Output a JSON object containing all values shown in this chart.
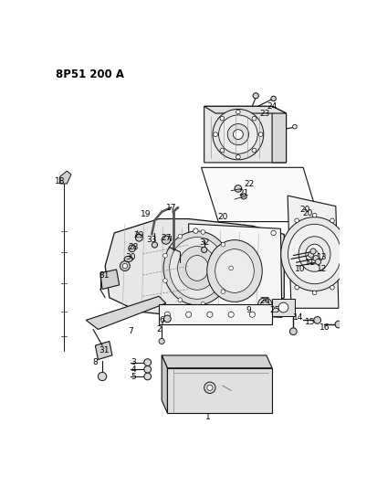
{
  "title": "8P51 200 A",
  "bg_color": "#ffffff",
  "fig_width": 4.13,
  "fig_height": 5.33,
  "dpi": 100,
  "labels": [
    [
      "18",
      18,
      175
    ],
    [
      "19",
      140,
      222
    ],
    [
      "17",
      175,
      212
    ],
    [
      "33",
      148,
      258
    ],
    [
      "27",
      168,
      255
    ],
    [
      "29",
      130,
      252
    ],
    [
      "28",
      122,
      268
    ],
    [
      "30",
      118,
      282
    ],
    [
      "31",
      80,
      308
    ],
    [
      "31",
      80,
      415
    ],
    [
      "8",
      68,
      432
    ],
    [
      "7",
      118,
      388
    ],
    [
      "6",
      162,
      372
    ],
    [
      "2",
      158,
      385
    ],
    [
      "9",
      285,
      358
    ],
    [
      "3",
      122,
      432
    ],
    [
      "4",
      122,
      442
    ],
    [
      "5",
      122,
      453
    ],
    [
      "1",
      228,
      510
    ],
    [
      "32",
      222,
      262
    ],
    [
      "24",
      318,
      68
    ],
    [
      "23",
      308,
      78
    ],
    [
      "22",
      285,
      178
    ],
    [
      "21",
      278,
      192
    ],
    [
      "20",
      248,
      225
    ],
    [
      "20",
      368,
      220
    ],
    [
      "13",
      388,
      282
    ],
    [
      "11",
      372,
      290
    ],
    [
      "10",
      358,
      300
    ],
    [
      "12",
      388,
      300
    ],
    [
      "26",
      308,
      345
    ],
    [
      "25",
      322,
      358
    ],
    [
      "14",
      355,
      368
    ],
    [
      "15",
      372,
      375
    ],
    [
      "16",
      392,
      382
    ]
  ]
}
